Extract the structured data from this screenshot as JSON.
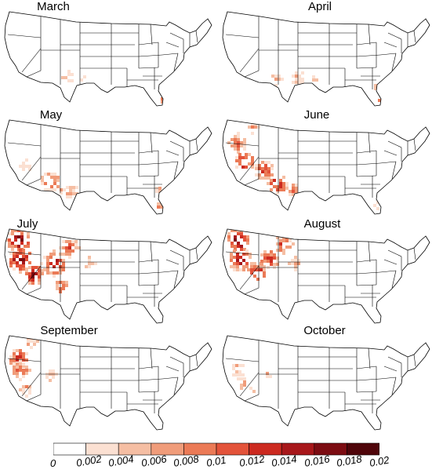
{
  "panels": [
    {
      "title": "March"
    },
    {
      "title": "April"
    },
    {
      "title": "May"
    },
    {
      "title": "June"
    },
    {
      "title": "July"
    },
    {
      "title": "August"
    },
    {
      "title": "September"
    },
    {
      "title": "October"
    }
  ],
  "colorbar": {
    "ticks": [
      "0",
      "0.002",
      "0.004",
      "0.006",
      "0.008",
      "0.01",
      "0.012",
      "0.014",
      "0.016",
      "0.018",
      "0.02"
    ],
    "colors": [
      "#ffffff",
      "#fbe0d2",
      "#f5bea3",
      "#f09c7a",
      "#eb7a56",
      "#e3533a",
      "#cc2a20",
      "#a7171a",
      "#7c0c12",
      "#4f050a"
    ],
    "range": [
      0,
      0.02
    ]
  }
}
